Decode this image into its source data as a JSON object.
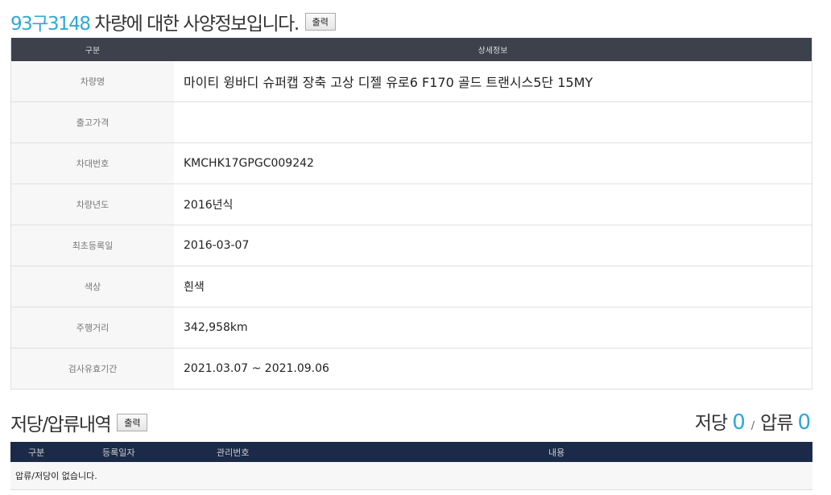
{
  "spec": {
    "plate": "93구3148",
    "title_suffix": " 차량에 대한 사양정보입니다.",
    "print_label": "출력",
    "headers": [
      "구분",
      "상세정보"
    ],
    "rows": [
      {
        "label": "차량명",
        "value": "마이티 윙바디 슈퍼캡 장축 고상 디젤 유로6 F170 골드 트랜시스5단 15MY"
      },
      {
        "label": "출고가격",
        "value": ""
      },
      {
        "label": "차대번호",
        "value": "KMCHK17GPGC009242"
      },
      {
        "label": "차량년도",
        "value": "2016년식"
      },
      {
        "label": "최초등록일",
        "value": "2016-03-07"
      },
      {
        "label": "색상",
        "value": "흰색"
      },
      {
        "label": "주행거리",
        "value": "342,958km"
      },
      {
        "label": "검사유효기간",
        "value": "2021.03.07 ~ 2021.09.06"
      }
    ]
  },
  "lien": {
    "title": "저당/압류내역",
    "print_label": "출력",
    "mortgage_label": "저당",
    "mortgage_count": "0",
    "seizure_label": "압류",
    "seizure_count": "0",
    "separator": "/",
    "headers": [
      "구분",
      "등록일자",
      "관리번호",
      "내용"
    ],
    "empty_message": "압류/저당이 없습니다."
  }
}
